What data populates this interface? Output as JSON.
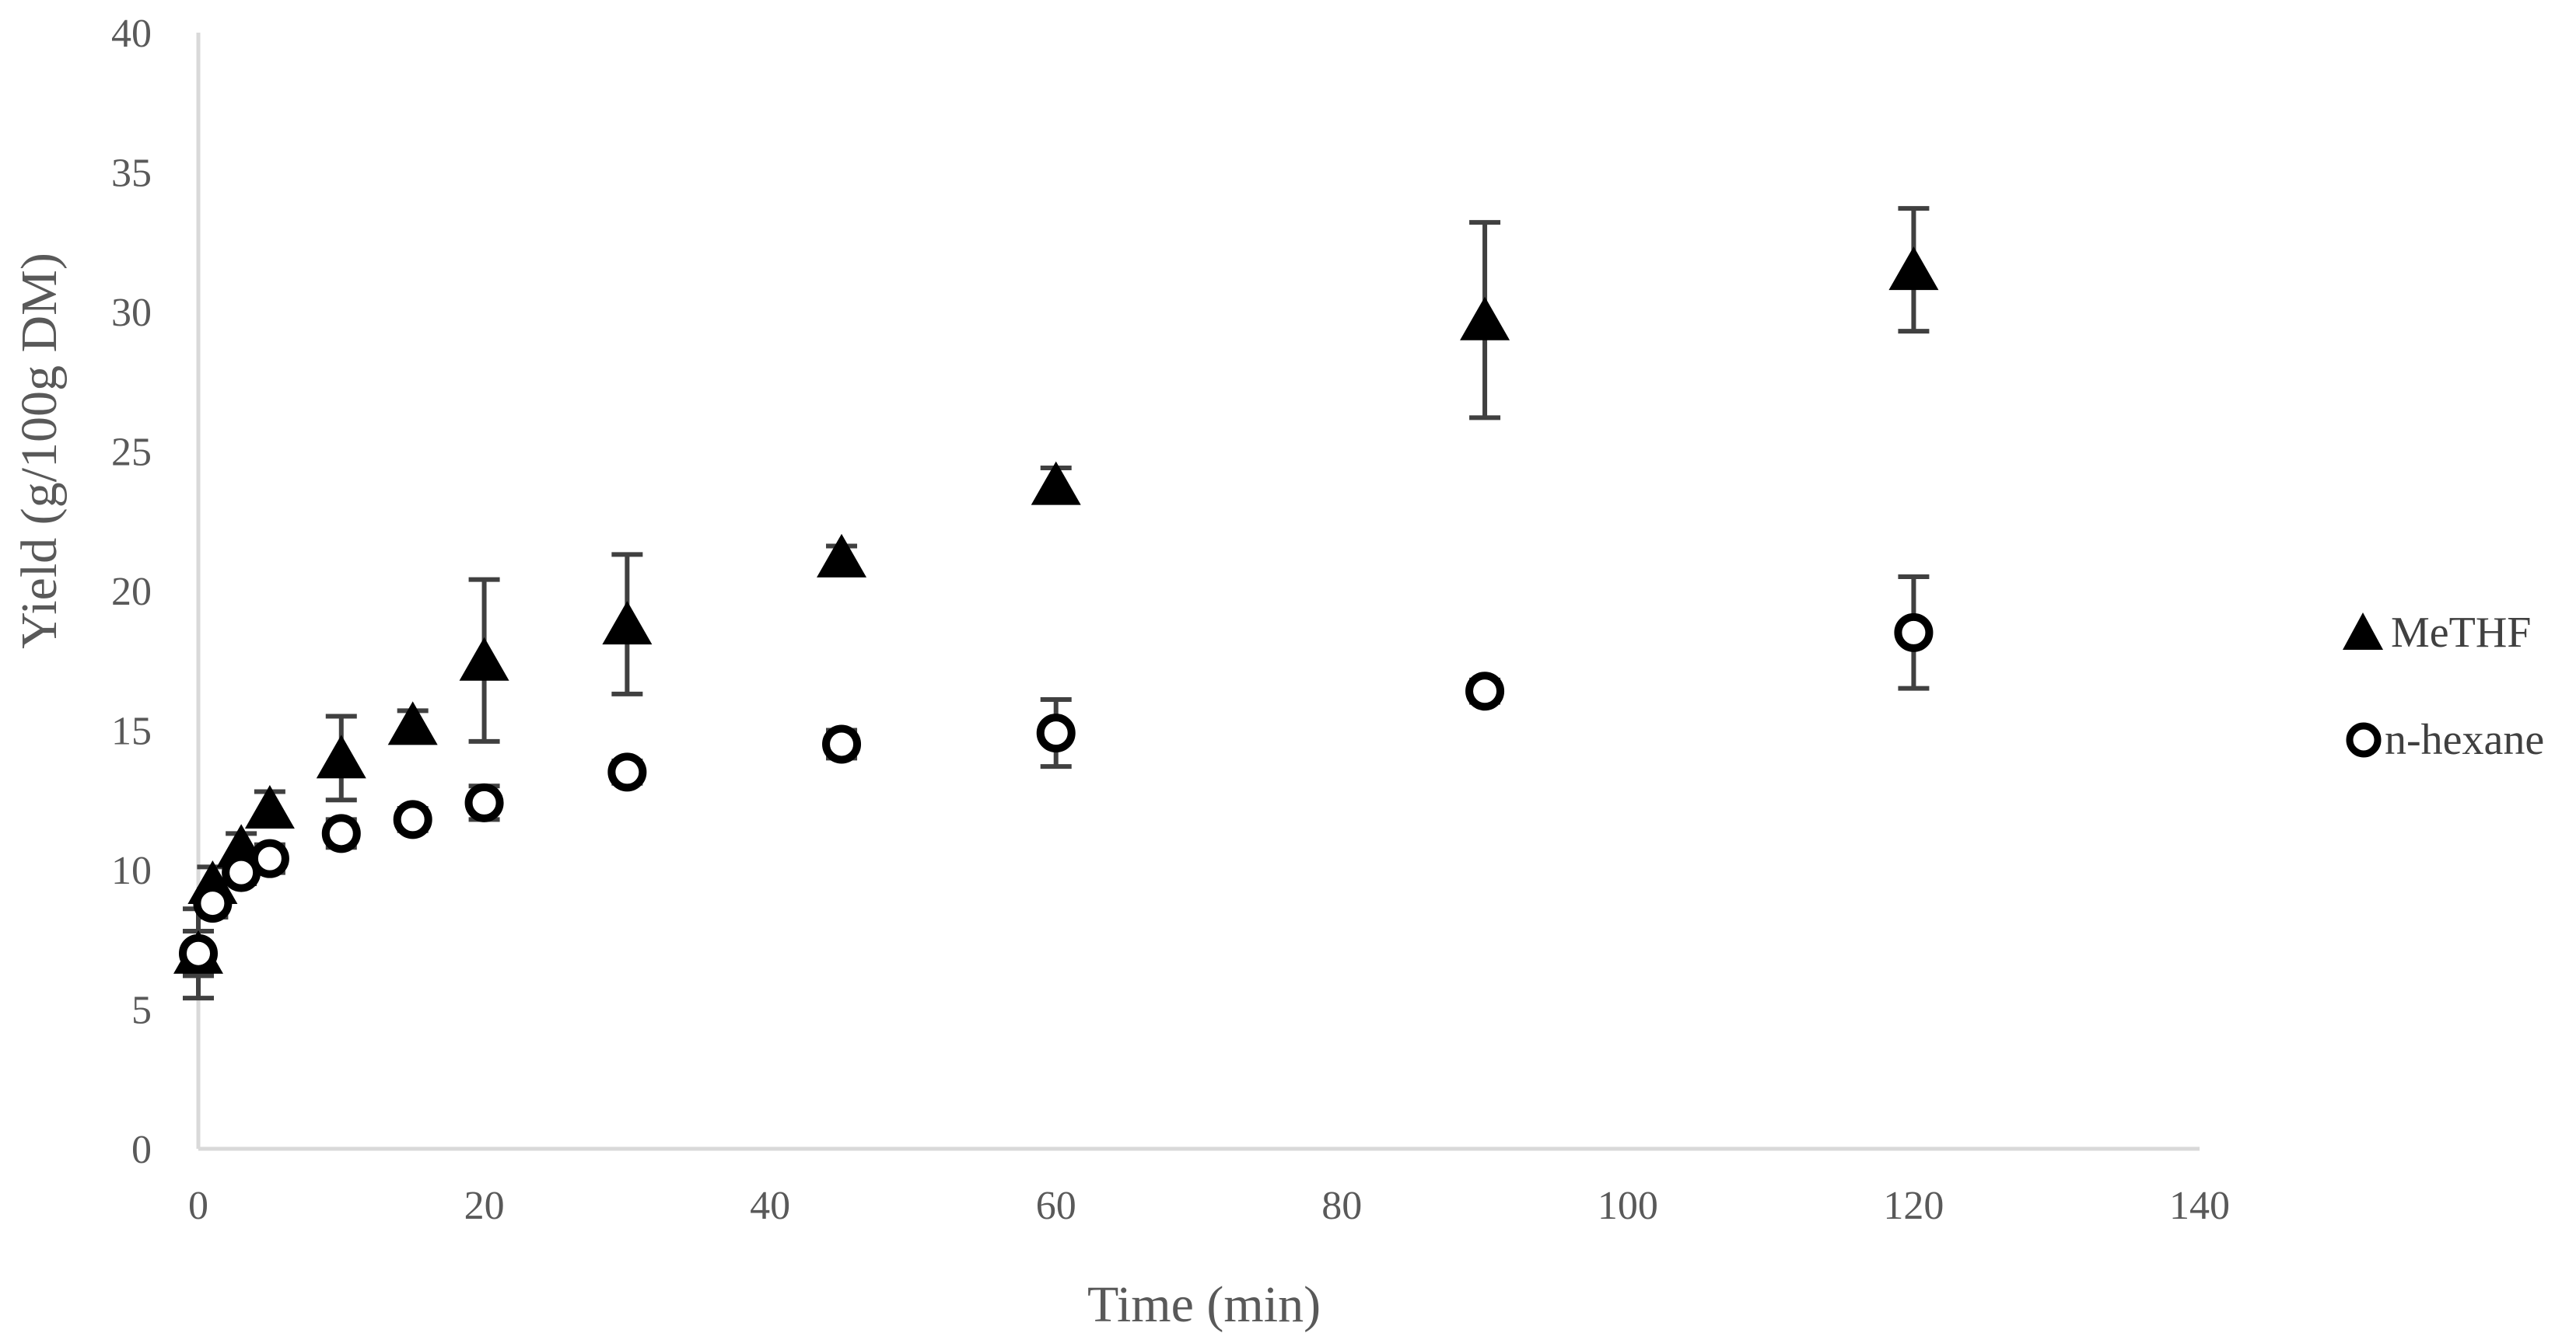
{
  "chart_data": {
    "type": "scatter",
    "title": "",
    "xlabel": "Time (min)",
    "ylabel": "Yield (g/100g DM)",
    "xlim": [
      0,
      140
    ],
    "ylim": [
      0,
      40
    ],
    "xticks": [
      0,
      20,
      40,
      60,
      80,
      100,
      120,
      140
    ],
    "yticks": [
      0,
      5,
      10,
      15,
      20,
      25,
      30,
      35,
      40
    ],
    "grid": false,
    "legend": "right",
    "series": [
      {
        "name": "MeTHF",
        "marker": "filled-triangle",
        "color": "#000000",
        "points": [
          {
            "x": 0,
            "y": 7.0,
            "err": 0.8
          },
          {
            "x": 1,
            "y": 9.5,
            "err": 0.6
          },
          {
            "x": 3,
            "y": 10.8,
            "err": 0.5
          },
          {
            "x": 5,
            "y": 12.2,
            "err": 0.6
          },
          {
            "x": 10,
            "y": 14.0,
            "err": 1.5
          },
          {
            "x": 15,
            "y": 15.2,
            "err": 0.5
          },
          {
            "x": 20,
            "y": 17.5,
            "err": 2.9
          },
          {
            "x": 30,
            "y": 18.8,
            "err": 2.5
          },
          {
            "x": 45,
            "y": 21.2,
            "err": 0.4
          },
          {
            "x": 60,
            "y": 23.8,
            "err": 0.6
          },
          {
            "x": 90,
            "y": 29.7,
            "err": 3.5
          },
          {
            "x": 120,
            "y": 31.5,
            "err": 2.2
          }
        ]
      },
      {
        "name": "n-hexane",
        "marker": "open-circle",
        "color": "#000000",
        "points": [
          {
            "x": 0,
            "y": 7.0,
            "err": 1.6
          },
          {
            "x": 1,
            "y": 8.8,
            "err": 0.5
          },
          {
            "x": 3,
            "y": 9.9,
            "err": 0.4
          },
          {
            "x": 5,
            "y": 10.4,
            "err": 0.5
          },
          {
            "x": 10,
            "y": 11.3,
            "err": 0.5
          },
          {
            "x": 15,
            "y": 11.8,
            "err": 0.4
          },
          {
            "x": 20,
            "y": 12.4,
            "err": 0.6
          },
          {
            "x": 30,
            "y": 13.5,
            "err": 0.4
          },
          {
            "x": 45,
            "y": 14.5,
            "err": 0.5
          },
          {
            "x": 60,
            "y": 14.9,
            "err": 1.2
          },
          {
            "x": 90,
            "y": 16.4,
            "err": 0.4
          },
          {
            "x": 120,
            "y": 18.5,
            "err": 2.0
          }
        ]
      }
    ]
  }
}
